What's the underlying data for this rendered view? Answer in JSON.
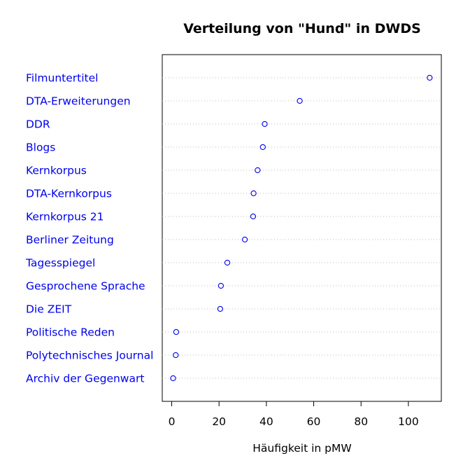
{
  "chart_data": {
    "type": "scatter",
    "subtype": "dotchart",
    "title": "Verteilung von \"Hund\" in DWDS",
    "xlabel": "Häufigkeit in pMW",
    "ylabel": "",
    "xlim": [
      -4,
      113
    ],
    "xticks": [
      0,
      20,
      40,
      60,
      80,
      100
    ],
    "grid": "dotted horizontal guide lines",
    "colors": {
      "labels": "#0000ee",
      "points": "#0000ee",
      "guides": "#bebebe",
      "frame": "#000000"
    },
    "categories": [
      "Filmuntertitel",
      "DTA-Erweiterungen",
      "DDR",
      "Blogs",
      "Kernkorpus",
      "DTA-Kernkorpus",
      "Kernkorpus 21",
      "Berliner Zeitung",
      "Tagesspiegel",
      "Gesprochene Sprache",
      "Die ZEIT",
      "Politische Reden",
      "Polytechnisches Journal",
      "Archiv der Gegenwart"
    ],
    "values": [
      109.0,
      54.1,
      39.3,
      38.5,
      36.3,
      34.6,
      34.4,
      30.9,
      23.5,
      20.8,
      20.5,
      1.9,
      1.7,
      0.6
    ]
  }
}
